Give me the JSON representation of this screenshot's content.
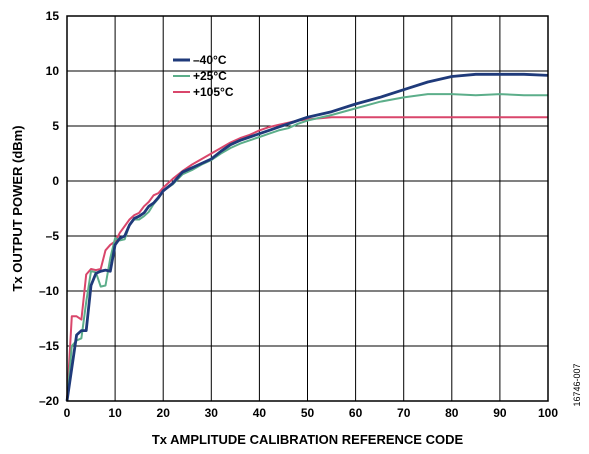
{
  "chart_data": {
    "type": "line",
    "xlabel": "Tx AMPLITUDE CALIBRATION REFERENCE CODE",
    "ylabel": "Tx OUTPUT POWER (dBm)",
    "xlim": [
      0,
      100
    ],
    "ylim": [
      -20,
      15
    ],
    "xticks": [
      0,
      10,
      20,
      30,
      40,
      50,
      60,
      70,
      80,
      90,
      100
    ],
    "yticks": [
      -20,
      -15,
      -10,
      -5,
      0,
      5,
      10,
      15
    ],
    "ytick_labels": [
      "–20",
      "–15",
      "–10",
      "–5",
      "0",
      "5",
      "10",
      "15"
    ],
    "grid": true,
    "legend_position": "top-left",
    "figure_id": "16746-007",
    "series": [
      {
        "name": "–40°C",
        "color": "#1f3a7a",
        "x": [
          0,
          1,
          2,
          3,
          4,
          5,
          6,
          7,
          8,
          9,
          10,
          11,
          12,
          13,
          14,
          15,
          16,
          17,
          18,
          19,
          20,
          22,
          24,
          26,
          28,
          30,
          32,
          34,
          36,
          38,
          40,
          42,
          44,
          46,
          48,
          50,
          55,
          60,
          65,
          70,
          75,
          80,
          85,
          90,
          95,
          100
        ],
        "values": [
          -20,
          -17,
          -14,
          -13.6,
          -13.6,
          -9.5,
          -8.4,
          -8.2,
          -8.1,
          -8.2,
          -5.8,
          -5.2,
          -5.0,
          -4.0,
          -3.4,
          -3.2,
          -2.9,
          -2.3,
          -2.0,
          -1.5,
          -0.9,
          -0.2,
          0.8,
          1.2,
          1.6,
          2.0,
          2.7,
          3.3,
          3.7,
          4.0,
          4.3,
          4.6,
          4.9,
          5.2,
          5.5,
          5.8,
          6.3,
          7.0,
          7.6,
          8.3,
          9.0,
          9.5,
          9.7,
          9.7,
          9.7,
          9.6
        ]
      },
      {
        "name": "+25°C",
        "color": "#5cae8a",
        "x": [
          0,
          1,
          2,
          3,
          4,
          5,
          6,
          7,
          8,
          9,
          10,
          11,
          12,
          13,
          14,
          15,
          16,
          17,
          18,
          19,
          20,
          22,
          24,
          26,
          28,
          30,
          32,
          34,
          36,
          38,
          40,
          42,
          44,
          46,
          48,
          50,
          55,
          60,
          65,
          70,
          75,
          80,
          85,
          90,
          95,
          100
        ],
        "values": [
          -20,
          -15,
          -14.5,
          -14.3,
          -11,
          -8.2,
          -8.3,
          -9.6,
          -9.5,
          -7.0,
          -5.2,
          -5.4,
          -5.3,
          -4.0,
          -3.5,
          -3.5,
          -3.2,
          -2.8,
          -2.1,
          -1.6,
          -0.9,
          -0.3,
          0.6,
          1.0,
          1.5,
          1.9,
          2.5,
          3.0,
          3.4,
          3.7,
          4.0,
          4.3,
          4.6,
          4.8,
          5.2,
          5.5,
          6.0,
          6.6,
          7.2,
          7.6,
          7.9,
          7.9,
          7.8,
          7.9,
          7.8,
          7.8
        ]
      },
      {
        "name": "+105°C",
        "color": "#d9466b",
        "x": [
          0,
          1,
          2,
          3,
          4,
          5,
          6,
          7,
          8,
          9,
          10,
          11,
          12,
          13,
          14,
          15,
          16,
          17,
          18,
          19,
          20,
          22,
          24,
          26,
          28,
          30,
          32,
          34,
          36,
          38,
          40,
          42,
          44,
          46,
          48,
          50,
          55,
          60,
          65,
          70,
          75,
          80,
          85,
          90,
          95,
          100
        ],
        "values": [
          -20,
          -12.3,
          -12.3,
          -12.6,
          -8.5,
          -8.0,
          -8.1,
          -8.0,
          -6.3,
          -5.8,
          -5.5,
          -4.7,
          -4.1,
          -3.5,
          -3.1,
          -2.9,
          -2.3,
          -1.9,
          -1.3,
          -1.1,
          -0.6,
          0.2,
          0.9,
          1.5,
          2.0,
          2.5,
          3.0,
          3.5,
          3.9,
          4.2,
          4.6,
          4.9,
          5.1,
          5.3,
          5.5,
          5.6,
          5.8,
          5.8,
          5.8,
          5.8,
          5.8,
          5.8,
          5.8,
          5.8,
          5.8,
          5.8
        ]
      }
    ]
  }
}
